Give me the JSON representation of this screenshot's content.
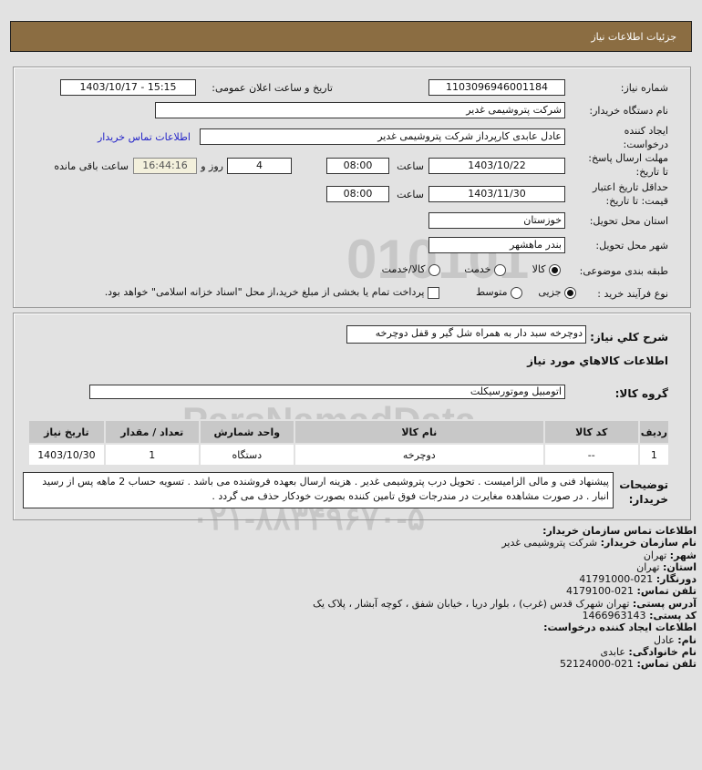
{
  "header": {
    "title": "جزئیات اطلاعات نیاز"
  },
  "form": {
    "need_number_label": "شماره نیاز:",
    "need_number": "1103096946001184",
    "announce_label": "تاریخ و ساعت اعلان عمومی:",
    "announce_value": "1403/10/17 - 15:15",
    "buyer_label": "نام دستگاه خریدار:",
    "buyer_value": "شرکت پتروشیمی غدیر",
    "creator_label_1": "ایجاد کننده",
    "creator_label_2": "درخواست:",
    "creator_value": "عادل عابدی کارپرداز شرکت پتروشیمی غدیر",
    "contact_link": "اطلاعات تماس خریدار",
    "deadline_label_1": "مهلت ارسال پاسخ:",
    "deadline_label_2": "تا تاریخ:",
    "deadline_date": "1403/10/22",
    "time_label": "ساعت",
    "deadline_time": "08:00",
    "days": "4",
    "days_label": "روز و",
    "remaining": "16:44:16",
    "remaining_label": "ساعت باقی مانده",
    "validity_label_1": "حداقل تاریخ اعتبار",
    "validity_label_2": "قیمت: تا تاریخ:",
    "validity_date": "1403/11/30",
    "validity_time": "08:00",
    "province_label": "استان محل تحویل:",
    "province_value": "خوزستان",
    "city_label": "شهر محل تحویل:",
    "city_value": "بندر ماهشهر",
    "category_label": "طبقه بندی موضوعی:",
    "category_options": [
      "کالا",
      "خدمت",
      "کالا/خدمت"
    ],
    "category_selected": "کالا",
    "process_label": "نوع فرآیند خرید :",
    "process_options": [
      "جزیی",
      "متوسط"
    ],
    "process_selected": "جزیی",
    "payment_note": "پرداخت تمام یا بخشی از مبلغ خرید،از محل \"اسناد خزانه اسلامی\" خواهد بود.",
    "payment_checked": false
  },
  "details": {
    "summary_label": "شرح کلي نیاز:",
    "summary_value": "دوچرخه سبد دار به همراه شل گیر و قفل دوچرخه",
    "goods_heading": "اطلاعات کالاهاي مورد نیاز",
    "group_label": "گروه کالا:",
    "group_value": "اتومبیل وموتورسیکلت",
    "table": {
      "headers": [
        "ردیف",
        "کد کالا",
        "نام کالا",
        "واحد شمارش",
        "تعداد / مقدار",
        "تاریخ نیاز"
      ],
      "rows": [
        [
          "1",
          "--",
          "دوچرخه",
          "دستگاه",
          "1",
          "1403/10/30"
        ]
      ]
    },
    "notes_label_1": "توضیحات",
    "notes_label_2": "خریدار:",
    "notes_value": "پیشنهاد فنی و مالی الزامیست . تحویل درب پتروشیمی غدیر . هزینه ارسال بعهده فروشنده می باشد . تسویه حساب 2 ماهه پس از رسید انبار . در صورت مشاهده مغایرت در مندرجات فوق تامین کننده بصورت خودکار حذف می گردد ."
  },
  "contact": {
    "heading": "اطلاعات تماس سازمان خریدار:",
    "org_label": "نام سازمان خریدار:",
    "org": "شرکت پتروشیمی غدیر",
    "city_label": "شهر:",
    "city": "تهران",
    "province_label": "استان:",
    "province": "تهران",
    "fax_label": "دورنگار:",
    "fax": "021-41791000",
    "phone_label": "تلفن تماس:",
    "phone": "021-4179100",
    "address_label": "آدرس پستی:",
    "address": "تهران شهرک قدس (غرب) ، بلوار دریا ، خیابان شفق ، کوچه آبشار ، پلاک یک",
    "postal_label": "کد پستی:",
    "postal": "1466963143",
    "creator_heading": "اطلاعات ایجاد کننده درخواست:",
    "name_label": "نام:",
    "name": "عادل",
    "family_label": "نام خانوادگی:",
    "family": "عابدی",
    "creator_phone_label": "تلفن تماس:",
    "creator_phone": "021-52124000"
  },
  "watermark": {
    "brand": "ParsNamadData",
    "phone": "۰۲۱-۸۸۳۴۹۶۷۰-۵"
  }
}
